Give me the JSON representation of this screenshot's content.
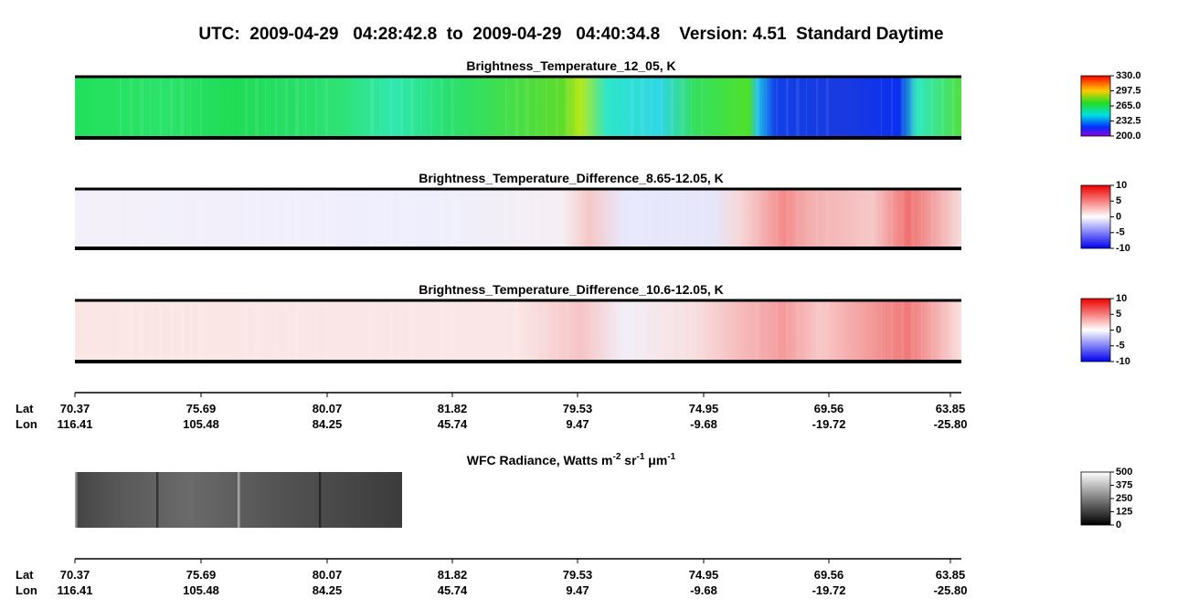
{
  "header": {
    "title": "UTC:  2009-04-29   04:28:42.8  to  2009-04-29   04:40:34.8    Version: 4.51  Standard Daytime"
  },
  "panels": [
    {
      "title": "Brightness_Temperature_12_05, K",
      "colorbar": [
        "330.0",
        "297.5",
        "265.0",
        "232.5",
        "200.0"
      ]
    },
    {
      "title": "Brightness_Temperature_Difference_8.65-12.05, K",
      "colorbar": [
        "10",
        "5",
        "0",
        "-5",
        "-10"
      ]
    },
    {
      "title": "Brightness_Temperature_Difference_10.6-12.05, K",
      "colorbar": [
        "10",
        "5",
        "0",
        "-5",
        "-10"
      ]
    }
  ],
  "axes": [
    {
      "lat_label": "Lat",
      "lon_label": "Lon",
      "lat": [
        "70.37",
        "75.69",
        "80.07",
        "81.82",
        "79.53",
        "74.95",
        "69.56",
        "63.85"
      ],
      "lon": [
        "116.41",
        "105.48",
        "84.25",
        "45.74",
        "9.47",
        "-9.68",
        "-19.72",
        "-25.80"
      ]
    },
    {
      "lat_label": "Lat",
      "lon_label": "Lon",
      "lat": [
        "70.37",
        "75.69",
        "80.07",
        "81.82",
        "79.53",
        "74.95",
        "69.56",
        "63.85"
      ],
      "lon": [
        "116.41",
        "105.48",
        "84.25",
        "45.74",
        "9.47",
        "-9.68",
        "-19.72",
        "-25.80"
      ]
    }
  ],
  "wfc": {
    "title_parts": [
      "WFC Radiance, Watts m",
      "-2",
      " sr",
      "-1",
      " μm",
      "-1"
    ],
    "colorbar": [
      "500",
      "375",
      "250",
      "125",
      "0"
    ]
  }
}
